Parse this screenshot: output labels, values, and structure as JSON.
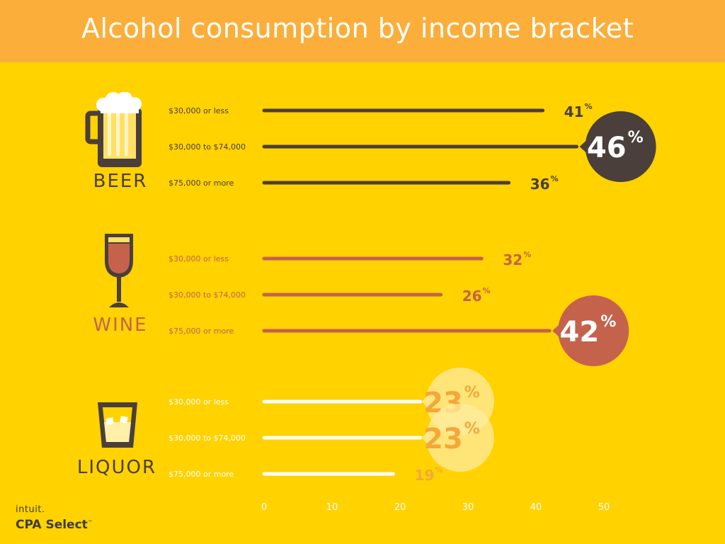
{
  "title": "Alcohol consumption by income bracket",
  "brand": {
    "company": "intuit.",
    "product": "CPA Select",
    "mark": "™"
  },
  "colors": {
    "background": "#FFD200",
    "title_bar": "#FBAE3A",
    "beer": "#4A3F3B",
    "wine": "#C5624C",
    "liquor_bar": "#FFFFFF",
    "liquor_value": "#F5A73A",
    "liquor_bubble": "#FFEBA0",
    "axis_text": "#FFFFFF"
  },
  "icons": [
    "beer-mug-icon",
    "wine-glass-icon",
    "liquor-glass-icon"
  ],
  "chart_data": {
    "type": "bar",
    "orientation": "horizontal",
    "title": "Alcohol consumption by income bracket",
    "xlim": [
      0,
      50
    ],
    "x_ticks": [
      "0",
      "10",
      "20",
      "30",
      "40",
      "50"
    ],
    "unit": "%",
    "categories": [
      "$30,000 or less",
      "$30,000 to $74,000",
      "$75,000 or more"
    ],
    "series": [
      {
        "name": "BEER",
        "values": [
          41,
          46,
          36
        ],
        "highlight_index": 1
      },
      {
        "name": "WINE",
        "values": [
          32,
          26,
          42
        ],
        "highlight_index": 2
      },
      {
        "name": "LIQUOR",
        "values": [
          23,
          23,
          19
        ],
        "highlight_index": [
          0,
          1
        ]
      }
    ]
  }
}
